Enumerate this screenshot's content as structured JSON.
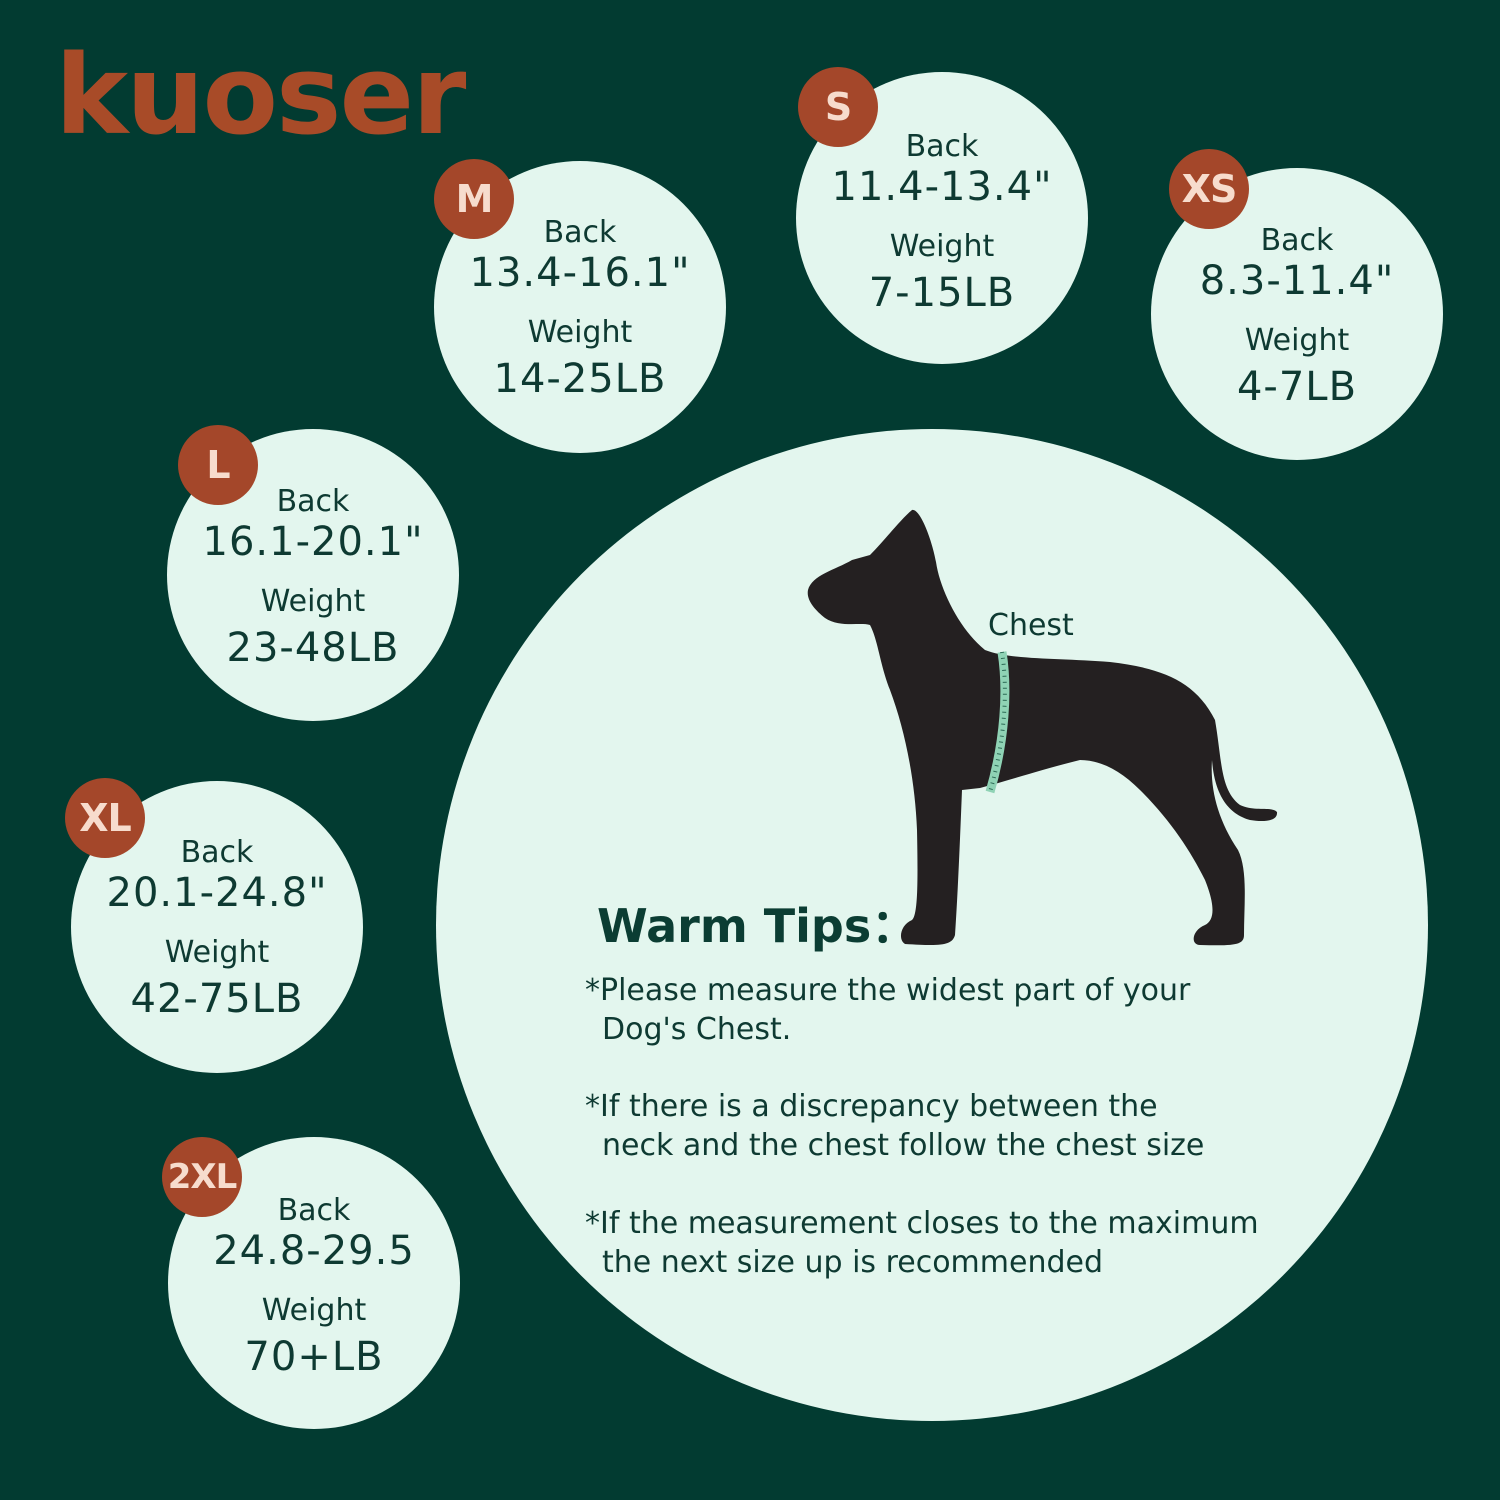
{
  "brand": {
    "logo_text": "kuoser",
    "accent_color": "#a84b28",
    "background_color": "#023b31",
    "circle_color": "#e3f6ee"
  },
  "sizes": [
    {
      "size": "M",
      "back_label": "Back",
      "back": "13.4-16.1\"",
      "weight_label": "Weight",
      "weight": "14-25LB"
    },
    {
      "size": "S",
      "back_label": "Back",
      "back": "11.4-13.4\"",
      "weight_label": "Weight",
      "weight": "7-15LB"
    },
    {
      "size": "XS",
      "back_label": "Back",
      "back": "8.3-11.4\"",
      "weight_label": "Weight",
      "weight": "4-7LB"
    },
    {
      "size": "L",
      "back_label": "Back",
      "back": "16.1-20.1\"",
      "weight_label": "Weight",
      "weight": "23-48LB"
    },
    {
      "size": "XL",
      "back_label": "Back",
      "back": "20.1-24.8\"",
      "weight_label": "Weight",
      "weight": "42-75LB"
    },
    {
      "size": "2XL",
      "back_label": "Back",
      "back": "24.8-29.5",
      "weight_label": "Weight",
      "weight": "70+LB"
    }
  ],
  "diagram": {
    "chest_label": "Chest",
    "icon": "dog-silhouette-with-measuring-tape"
  },
  "tips": {
    "title": "Warm Tips：",
    "items": [
      {
        "line1": "*Please measure the widest part of your",
        "line2": "Dog's Chest."
      },
      {
        "line1": "*If there is a discrepancy between the",
        "line2": "neck and the chest follow the chest size"
      },
      {
        "line1": "*If the measurement closes to the maximum",
        "line2": "the next size up is recommended"
      }
    ]
  }
}
